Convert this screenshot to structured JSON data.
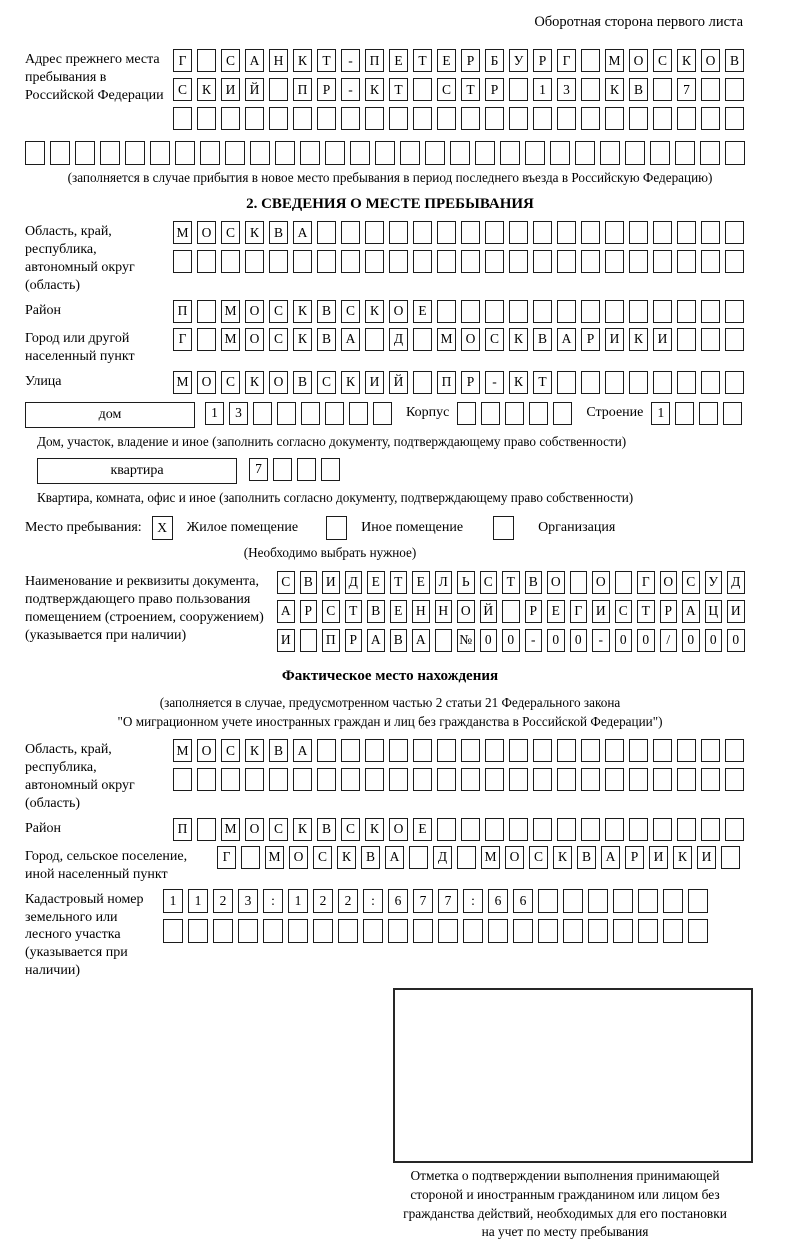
{
  "page": {
    "header_note": "Оборотная сторона первого листа"
  },
  "prev_address": {
    "label": "Адрес прежнего места пребывания в Российской Федерации",
    "rows": [
      [
        "Г",
        "",
        "С",
        "А",
        "Н",
        "К",
        "Т",
        "-",
        "П",
        "Е",
        "Т",
        "Е",
        "Р",
        "Б",
        "У",
        "Р",
        "Г",
        "",
        "М",
        "О",
        "С",
        "К",
        "О",
        "В"
      ],
      [
        "С",
        "К",
        "И",
        "Й",
        "",
        "П",
        "Р",
        "-",
        "К",
        "Т",
        "",
        "С",
        "Т",
        "Р",
        "",
        "1",
        "3",
        "",
        "К",
        "В",
        "",
        "7",
        "",
        ""
      ],
      [
        "",
        "",
        "",
        "",
        "",
        "",
        "",
        "",
        "",
        "",
        "",
        "",
        "",
        "",
        "",
        "",
        "",
        "",
        "",
        "",
        "",
        "",
        "",
        ""
      ],
      [
        "",
        "",
        "",
        "",
        "",
        "",
        "",
        "",
        "",
        "",
        "",
        "",
        "",
        "",
        "",
        "",
        "",
        "",
        "",
        "",
        "",
        "",
        "",
        "",
        "",
        "",
        "",
        "",
        ""
      ]
    ],
    "caption": "(заполняется в случае прибытия в новое место пребывания в период последнего въезда в Российскую Федерацию)"
  },
  "section2": {
    "title": "2. СВЕДЕНИЯ О МЕСТЕ ПРЕБЫВАНИЯ",
    "region": {
      "label": "Область, край, республика, автономный округ (область)",
      "rows": [
        [
          "М",
          "О",
          "С",
          "К",
          "В",
          "А",
          "",
          "",
          "",
          "",
          "",
          "",
          "",
          "",
          "",
          "",
          "",
          "",
          "",
          "",
          "",
          "",
          "",
          ""
        ],
        [
          "",
          "",
          "",
          "",
          "",
          "",
          "",
          "",
          "",
          "",
          "",
          "",
          "",
          "",
          "",
          "",
          "",
          "",
          "",
          "",
          "",
          "",
          "",
          ""
        ]
      ]
    },
    "district": {
      "label": "Район",
      "row": [
        "П",
        "",
        "М",
        "О",
        "С",
        "К",
        "В",
        "С",
        "К",
        "О",
        "Е",
        "",
        "",
        "",
        "",
        "",
        "",
        "",
        "",
        "",
        "",
        "",
        "",
        ""
      ]
    },
    "city": {
      "label": "Город или другой населенный пункт",
      "row": [
        "Г",
        "",
        "М",
        "О",
        "С",
        "К",
        "В",
        "А",
        "",
        "Д",
        "",
        "М",
        "О",
        "С",
        "К",
        "В",
        "А",
        "Р",
        "И",
        "К",
        "И",
        "",
        "",
        ""
      ]
    },
    "street": {
      "label": "Улица",
      "row": [
        "М",
        "О",
        "С",
        "К",
        "О",
        "В",
        "С",
        "К",
        "И",
        "Й",
        "",
        "П",
        "Р",
        "-",
        "К",
        "Т",
        "",
        "",
        "",
        "",
        "",
        "",
        "",
        ""
      ]
    },
    "house": {
      "label": "дом",
      "cells": [
        "1",
        "3",
        "",
        "",
        "",
        "",
        "",
        ""
      ],
      "korpus_label": "Корпус",
      "korpus_cells": [
        "",
        "",
        "",
        "",
        ""
      ],
      "stroenie_label": "Строение",
      "stroenie_cells": [
        "1",
        "",
        "",
        ""
      ]
    },
    "house_caption": "Дом, участок, владение и иное (заполнить согласно документу, подтверждающему право собственности)",
    "apartment": {
      "label": "квартира",
      "cells": [
        "7",
        "",
        "",
        ""
      ]
    },
    "apartment_caption": "Квартира, комната, офис и иное (заполнить согласно документу, подтверждающему право собственности)",
    "stay_place": {
      "label": "Место пребывания:",
      "options": [
        {
          "mark": "X",
          "label": "Жилое помещение"
        },
        {
          "mark": "",
          "label": "Иное помещение"
        },
        {
          "mark": "",
          "label": "Организация"
        }
      ],
      "note": "(Необходимо выбрать нужное)"
    },
    "document": {
      "label": "Наименование и реквизиты документа, подтверждающего право пользования помещением (строением, сооружением) (указывается при наличии)",
      "rows": [
        [
          "С",
          "В",
          "И",
          "Д",
          "Е",
          "Т",
          "Е",
          "Л",
          "Ь",
          "С",
          "Т",
          "В",
          "О",
          "",
          "О",
          "",
          "Г",
          "О",
          "С",
          "У",
          "Д"
        ],
        [
          "А",
          "Р",
          "С",
          "Т",
          "В",
          "Е",
          "Н",
          "Н",
          "О",
          "Й",
          "",
          "Р",
          "Е",
          "Г",
          "И",
          "С",
          "Т",
          "Р",
          "А",
          "Ц",
          "И"
        ],
        [
          "И",
          "",
          "П",
          "Р",
          "А",
          "В",
          "А",
          "",
          "№",
          "0",
          "0",
          "-",
          "0",
          "0",
          "-",
          "0",
          "0",
          "/",
          "0",
          "0",
          "0"
        ]
      ]
    }
  },
  "actual_location": {
    "title": "Фактическое место нахождения",
    "caption_line1": "(заполняется в случае, предусмотренном частью 2 статьи 21 Федерального закона",
    "caption_line2": "\"О миграционном учете иностранных граждан и лиц без гражданства в Российской Федерации\")",
    "region": {
      "label": "Область, край, республика, автономный округ (область)",
      "rows": [
        [
          "М",
          "О",
          "С",
          "К",
          "В",
          "А",
          "",
          "",
          "",
          "",
          "",
          "",
          "",
          "",
          "",
          "",
          "",
          "",
          "",
          "",
          "",
          "",
          "",
          ""
        ],
        [
          "",
          "",
          "",
          "",
          "",
          "",
          "",
          "",
          "",
          "",
          "",
          "",
          "",
          "",
          "",
          "",
          "",
          "",
          "",
          "",
          "",
          "",
          "",
          ""
        ]
      ]
    },
    "district": {
      "label": "Район",
      "row": [
        "П",
        "",
        "М",
        "О",
        "С",
        "К",
        "В",
        "С",
        "К",
        "О",
        "Е",
        "",
        "",
        "",
        "",
        "",
        "",
        "",
        "",
        "",
        "",
        "",
        "",
        ""
      ]
    },
    "city": {
      "label": "Город, сельское поселение, иной населенный пункт",
      "row": [
        "Г",
        "",
        "М",
        "О",
        "С",
        "К",
        "В",
        "А",
        "",
        "Д",
        "",
        "М",
        "О",
        "С",
        "К",
        "В",
        "А",
        "Р",
        "И",
        "К",
        "И",
        ""
      ]
    },
    "cadastral": {
      "label": "Кадастровый номер земельного или лесного участка (указывается при наличии)",
      "rows": [
        [
          "1",
          "1",
          "2",
          "3",
          ":",
          "1",
          "2",
          "2",
          ":",
          "6",
          "7",
          "7",
          ":",
          "6",
          "6",
          "",
          "",
          "",
          "",
          "",
          "",
          ""
        ],
        [
          "",
          "",
          "",
          "",
          "",
          "",
          "",
          "",
          "",
          "",
          "",
          "",
          "",
          "",
          "",
          "",
          "",
          "",
          "",
          "",
          "",
          ""
        ]
      ]
    },
    "stamp_caption_lines": [
      "Отметка о подтверждении выполнения принимающей",
      "стороной и иностранным гражданином или лицом без",
      "гражданства действий, необходимых для его постановки",
      "на учет по месту пребывания"
    ]
  }
}
